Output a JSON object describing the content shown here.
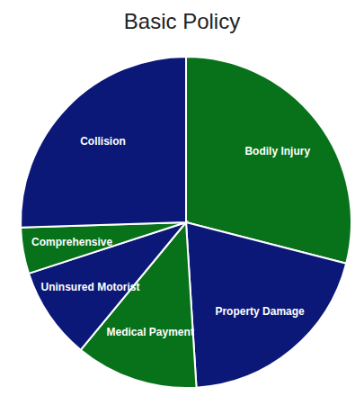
{
  "chart_data": {
    "type": "pie",
    "title": "Basic Policy",
    "categories": [
      "Bodily Injury",
      "Property Damage",
      "Medical Payment",
      "Uninsured Motorist",
      "Comprehensive",
      "Collision"
    ],
    "values": [
      29,
      20,
      12,
      9,
      4.5,
      25.5
    ],
    "colors": [
      "#08721a",
      "#0b1877",
      "#08721a",
      "#0b1877",
      "#08721a",
      "#0b1877"
    ]
  }
}
